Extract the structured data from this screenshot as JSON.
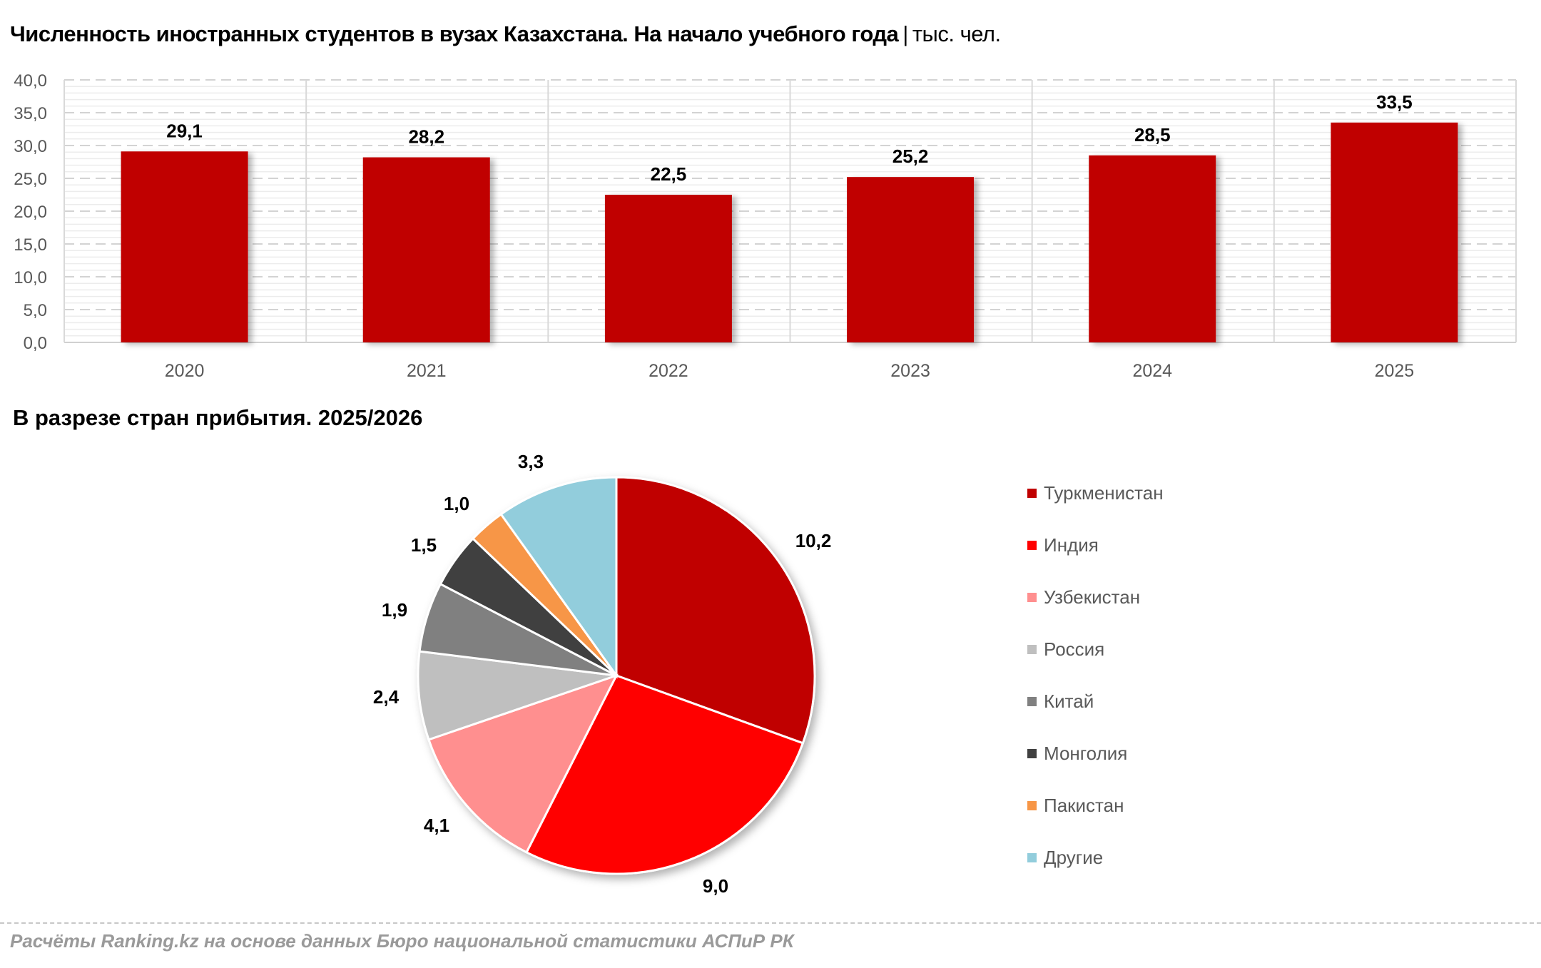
{
  "header": {
    "title": "Численность иностранных студентов в вузах Казахстана. На начало учебного года",
    "separator": "|",
    "unit": "тыс. чел."
  },
  "pie_section": {
    "title": "В разрезе стран прибытия. 2025/2026"
  },
  "footer": {
    "source": "Расчёты Ranking.kz на основе данных Бюро национальной статистики АСПиР РК"
  },
  "colors": {
    "bar": "#C00000",
    "grid": "#d9d9d9",
    "axis_text": "#595959"
  },
  "chart_data": [
    {
      "type": "bar",
      "title": "Численность иностранных студентов в вузах Казахстана. На начало учебного года",
      "unit": "тыс. чел.",
      "categories": [
        "2020",
        "2021",
        "2022",
        "2023",
        "2024",
        "2025"
      ],
      "values": [
        29.1,
        28.2,
        22.5,
        25.2,
        28.5,
        33.5
      ],
      "value_labels": [
        "29,1",
        "28,2",
        "22,5",
        "25,2",
        "28,5",
        "33,5"
      ],
      "xlabel": "",
      "ylabel": "",
      "ylim": [
        0,
        40
      ],
      "yticks": [
        "0,0",
        "5,0",
        "10,0",
        "15,0",
        "20,0",
        "25,0",
        "30,0",
        "35,0",
        "40,0"
      ],
      "grid": true,
      "legend": null
    },
    {
      "type": "pie",
      "title": "В разрезе стран прибытия. 2025/2026",
      "categories": [
        "Туркменистан",
        "Индия",
        "Узбекистан",
        "Россия",
        "Китай",
        "Монголия",
        "Пакистан",
        "Другие"
      ],
      "values": [
        10.2,
        9.0,
        4.1,
        2.4,
        1.9,
        1.5,
        1.0,
        3.3
      ],
      "value_labels": [
        "10,2",
        "9,0",
        "4,1",
        "2,4",
        "1,9",
        "1,5",
        "1,0",
        "3,3"
      ],
      "colors": [
        "#C00000",
        "#FF0000",
        "#FF8F8F",
        "#BFBFBF",
        "#808080",
        "#404040",
        "#F79646",
        "#92CDDC"
      ],
      "legend_position": "right"
    }
  ]
}
